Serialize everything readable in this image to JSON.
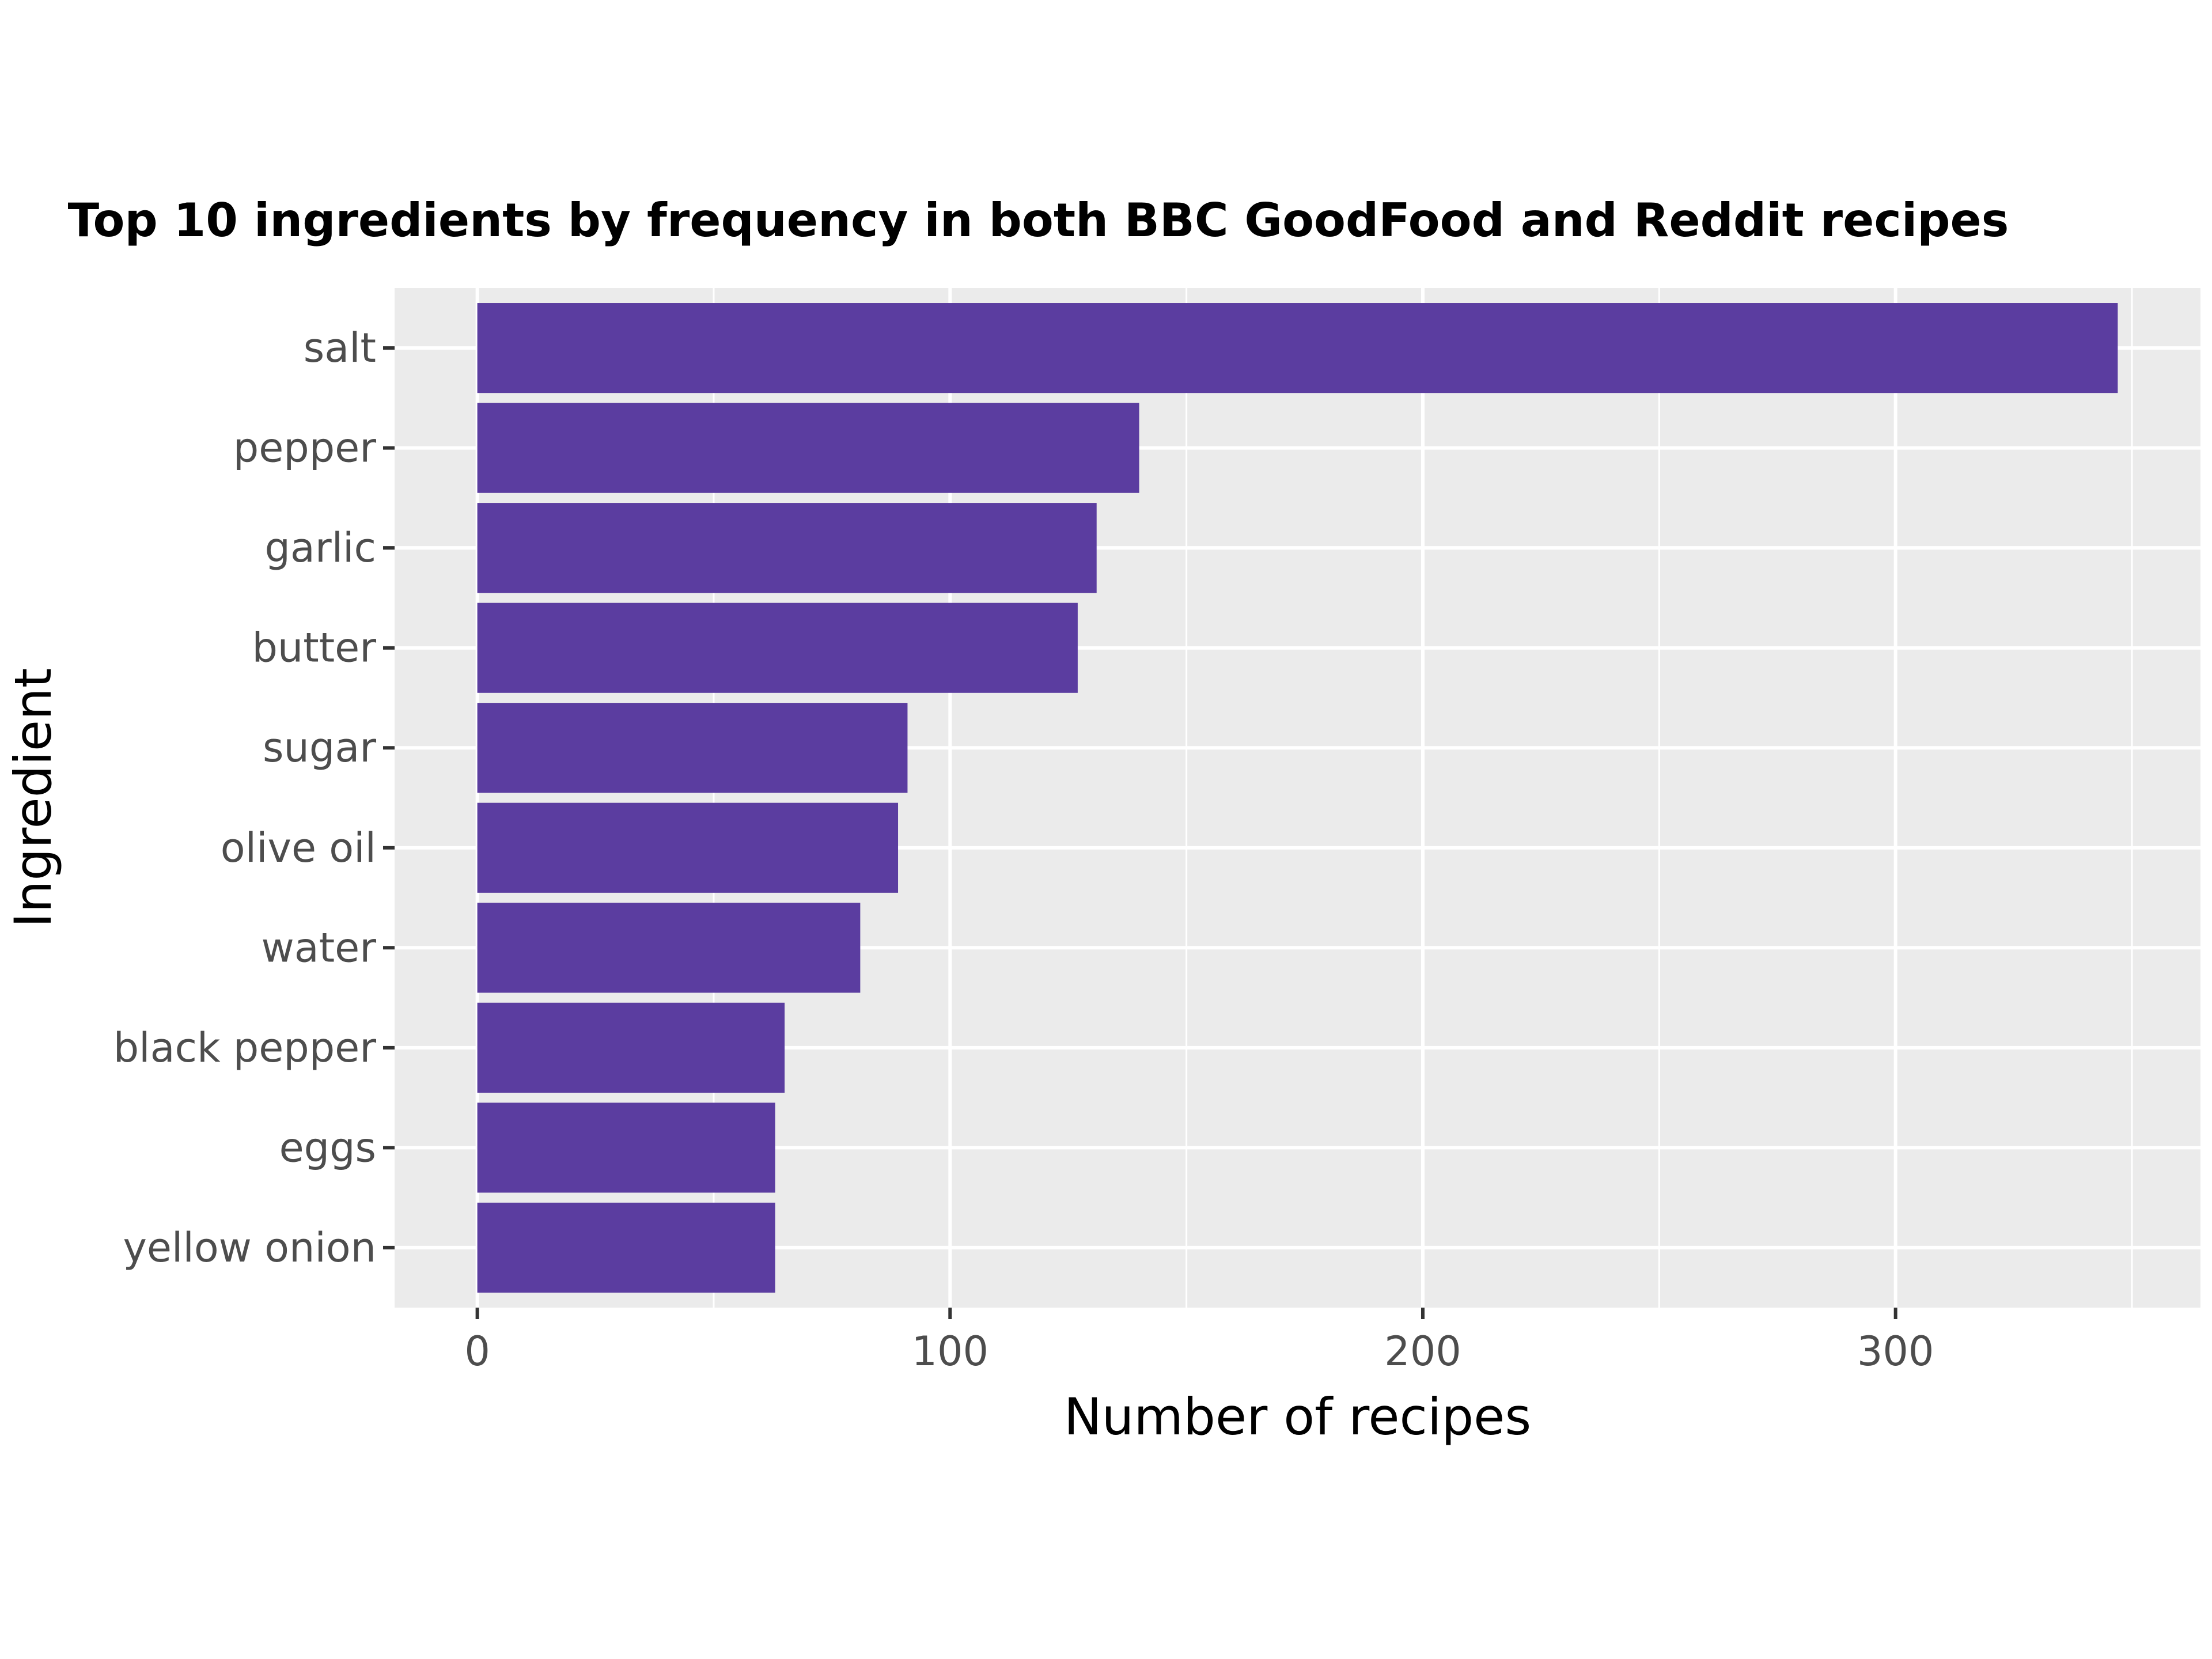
{
  "chart_data": {
    "type": "bar",
    "orientation": "horizontal",
    "title": "Top 10 ingredients by frequency in both BBC GoodFood and Reddit recipes",
    "xlabel": "Number of recipes",
    "ylabel": "Ingredient",
    "categories": [
      "salt",
      "pepper",
      "garlic",
      "butter",
      "sugar",
      "olive oil",
      "water",
      "black pepper",
      "eggs",
      "yellow onion"
    ],
    "values": [
      347,
      140,
      131,
      127,
      91,
      89,
      81,
      65,
      63,
      63
    ],
    "xlim": [
      -17.5,
      364.5
    ],
    "x_ticks": [
      0,
      100,
      200,
      300
    ],
    "x_tick_labels": [
      "0",
      "100",
      "200",
      "300"
    ],
    "grid": true,
    "legend": "none",
    "colors": {
      "bar": "#5b3da0",
      "panel_background": "#ebebeb",
      "gridline": "#ffffff",
      "tick_text": "#4d4d4d",
      "axis_text": "#000000"
    }
  }
}
